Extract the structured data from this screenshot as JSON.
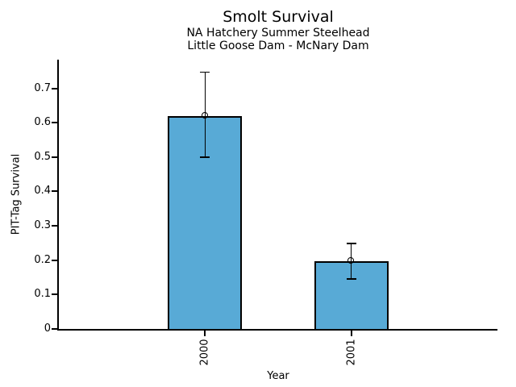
{
  "chart_data": {
    "type": "bar",
    "title": "Smolt Survival",
    "subtitle1": "NA Hatchery Summer Steelhead",
    "subtitle2": "Little Goose Dam - McNary Dam",
    "xlabel": "Year",
    "ylabel": "PIT-Tag Survival",
    "categories": [
      "2000",
      "2001"
    ],
    "values": [
      0.62,
      0.198
    ],
    "error_low": [
      0.5,
      0.146
    ],
    "error_high": [
      0.747,
      0.249
    ],
    "yticks": [
      0,
      0.1,
      0.2,
      0.3,
      0.4,
      0.5,
      0.6,
      0.7
    ],
    "ytick_labels": [
      "0",
      "0.1",
      "0.2",
      "0.3",
      "0.4",
      "0.5",
      "0.6",
      "0.7"
    ],
    "ylim": [
      0,
      0.7835
    ],
    "grid": false,
    "legend": "none",
    "bar_color": "#58AAD6",
    "bar_edge_color": "#000000",
    "error_color": "#000000"
  }
}
